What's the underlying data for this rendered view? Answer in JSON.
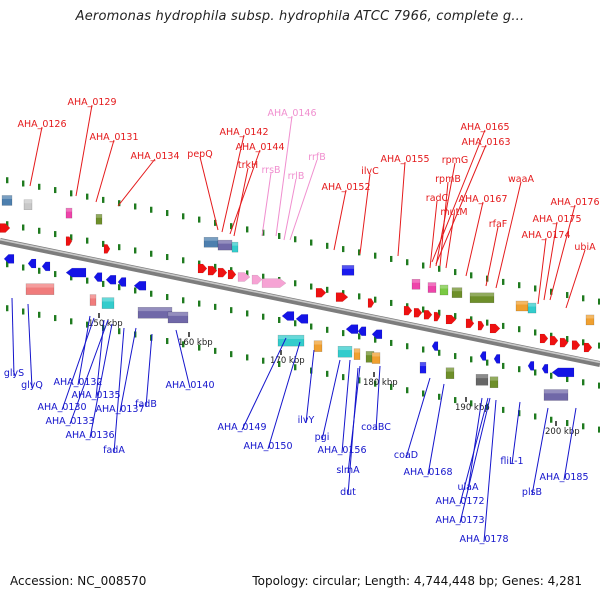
{
  "title": "Aeromonas hydrophila subsp. hydrophila ATCC 7966, complete g...",
  "footer": {
    "accession": "Accession: NC_008570",
    "summary": "Topology: circular; Length: 4,744,448 bp; Genes: 4,281"
  },
  "colors": {
    "forward_label": "#e41a1c",
    "reverse_label": "#1515cc",
    "rrna_label": "#f08fcf",
    "backbone": "#8c8c8c",
    "tick": "#1f7a1f"
  },
  "scale_labels": [
    "150 kbp",
    "160 kbp",
    "170 kbp",
    "180 kbp",
    "190 kbp",
    "200 kbp"
  ],
  "forward_genes": [
    "AHA_0126",
    "AHA_0129",
    "AHA_0131",
    "AHA_0134",
    "pepQ",
    "AHA_0142",
    "AHA_0144",
    "trkH",
    "AHA_0152",
    "ilvC",
    "AHA_0155",
    "AHA_0165",
    "AHA_0163",
    "rpmG",
    "rpmB",
    "radC",
    "mutM",
    "AHA_0167",
    "rfaF",
    "waaA",
    "AHA_0176",
    "AHA_0175",
    "AHA_0174",
    "ubiA"
  ],
  "rrna_genes": [
    "AHA_0146",
    "rrsB",
    "rrfB",
    "rrlB"
  ],
  "reverse_genes": [
    "glyS",
    "glyQ",
    "AHA_0132",
    "AHA_0130",
    "AHA_0135",
    "AHA_0133",
    "AHA_0137",
    "AHA_0136",
    "fadA",
    "fadB",
    "AHA_0140",
    "AHA_0149",
    "AHA_0150",
    "ilvY",
    "pgi",
    "AHA_0156",
    "coaBC",
    "slmA",
    "dut",
    "coaD",
    "AHA_0168",
    "ulaA",
    "AHA_0172",
    "AHA_0173",
    "AHA_0178",
    "fliL-1",
    "plsB",
    "AHA_0185"
  ]
}
